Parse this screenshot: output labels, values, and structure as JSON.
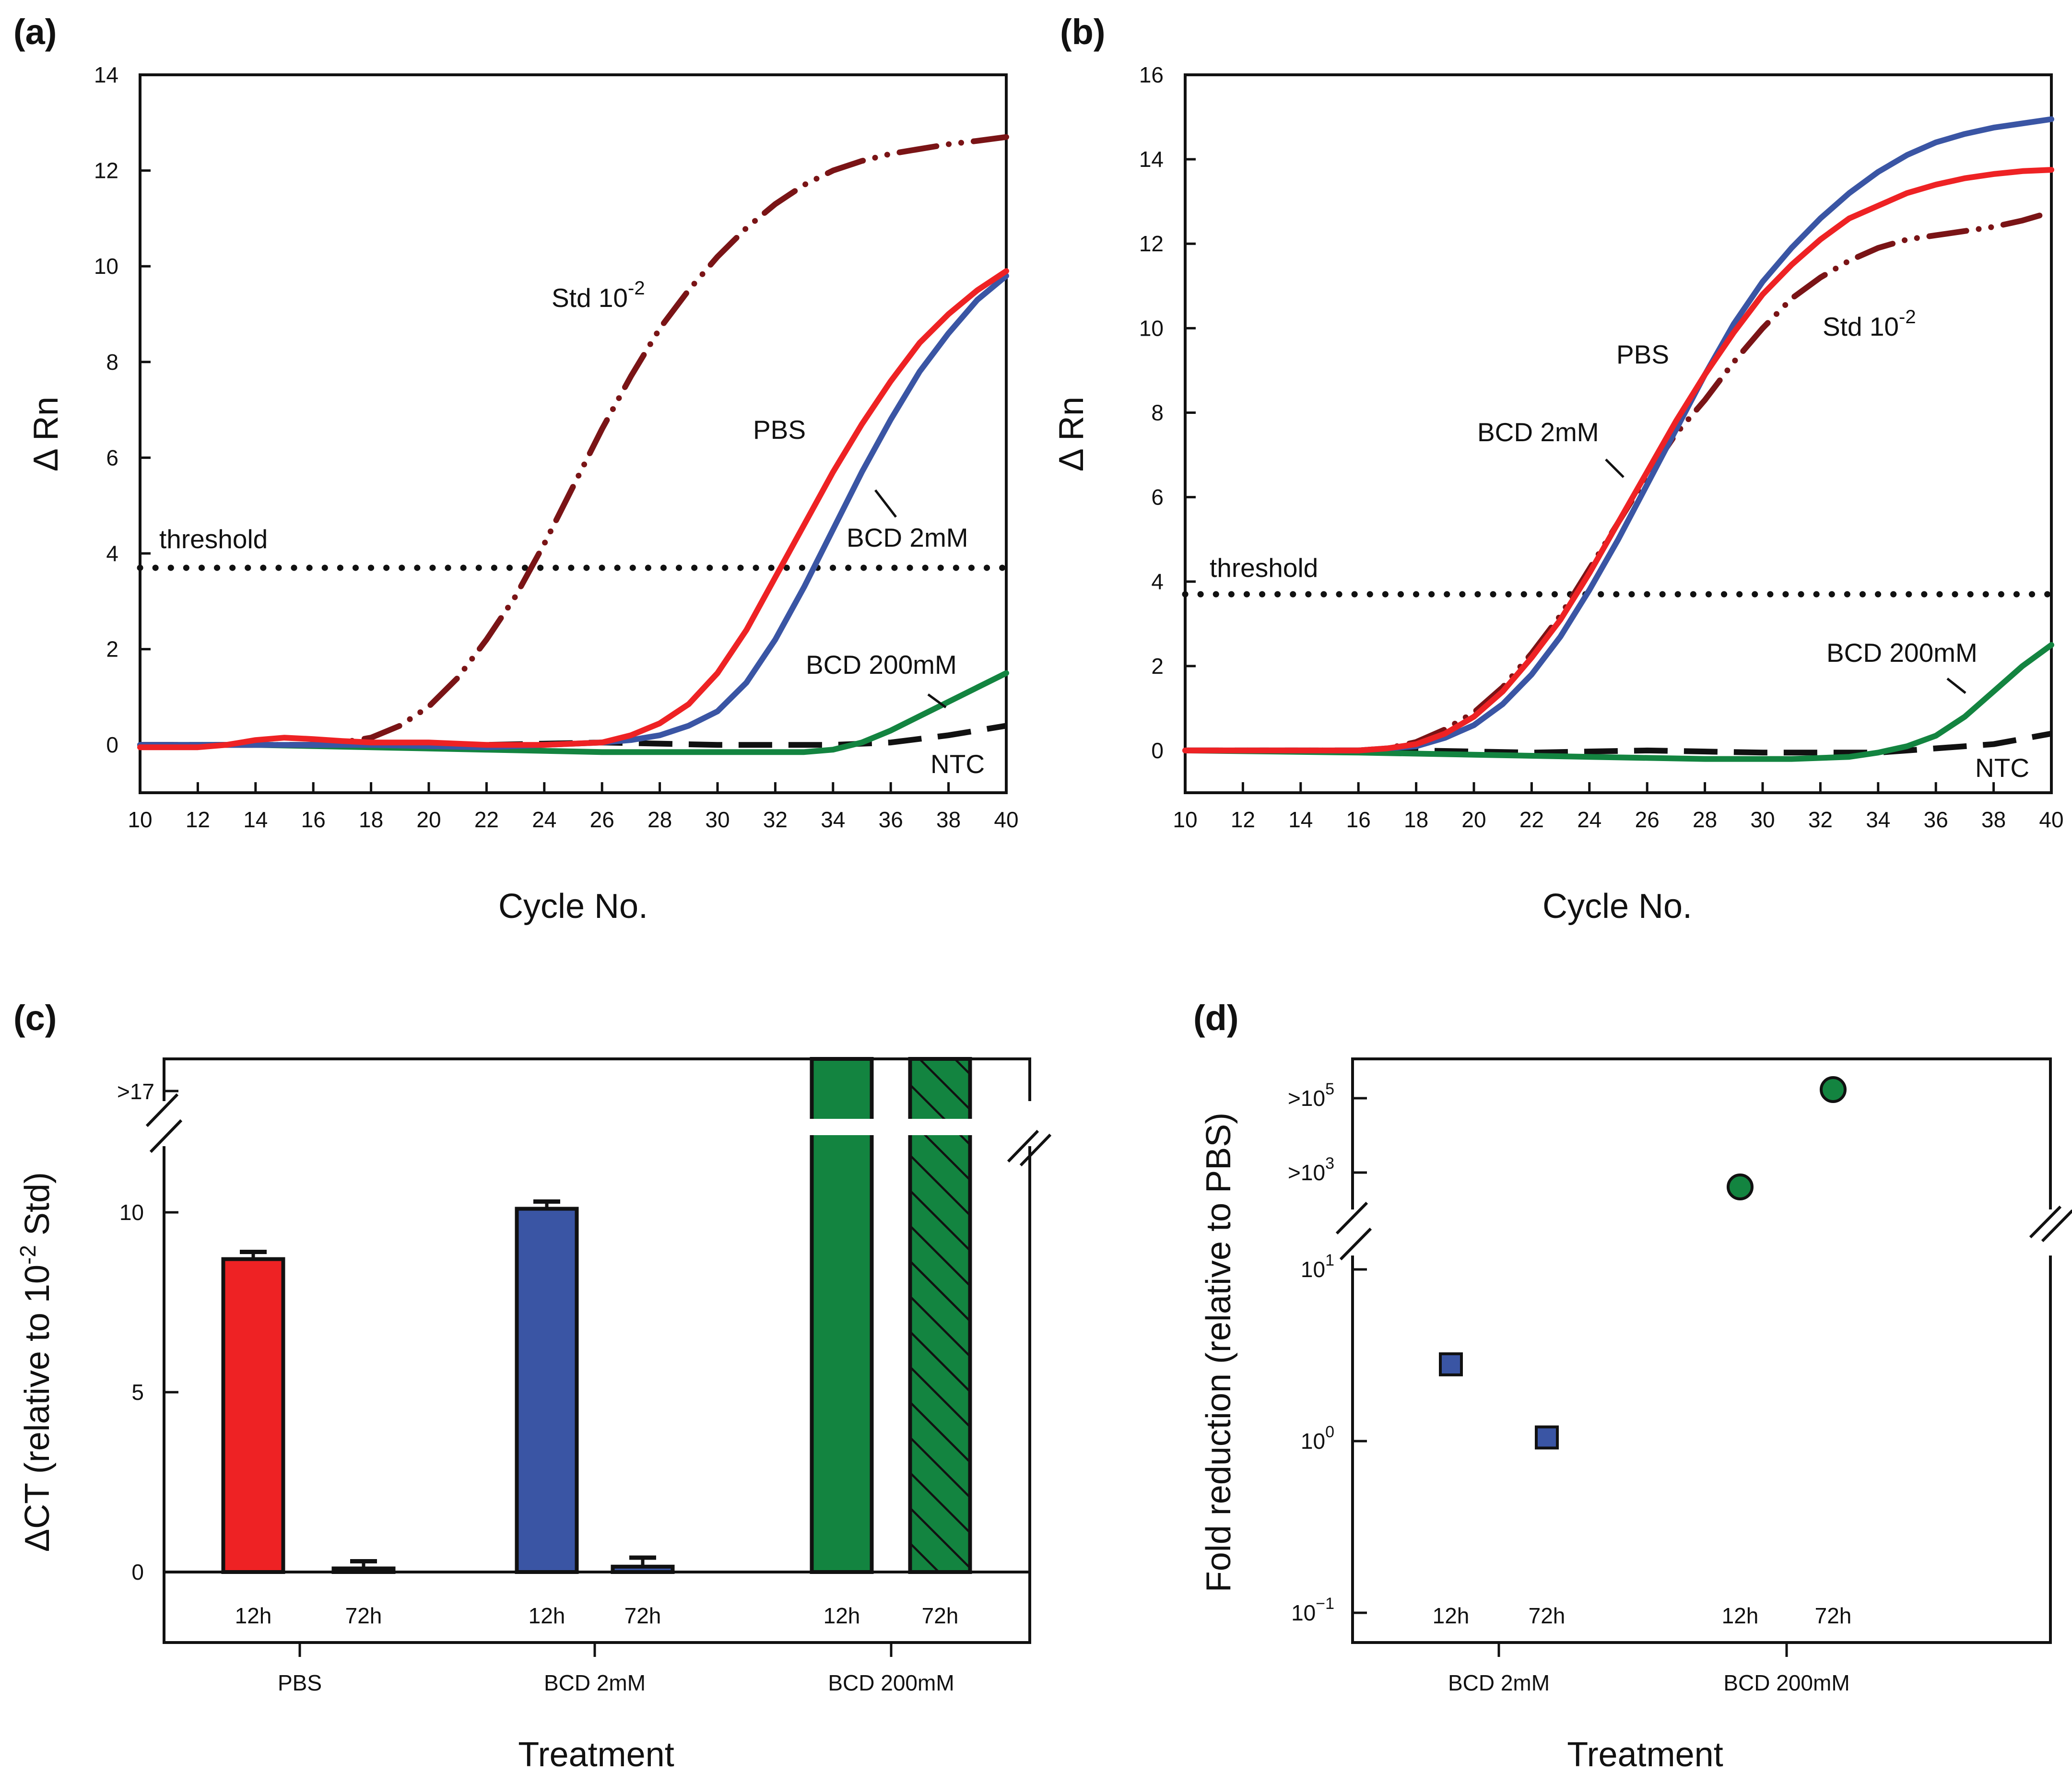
{
  "colors": {
    "red": "#ee2224",
    "blue": "#3a55a4",
    "green": "#138440",
    "darkred": "#7a1416",
    "black": "#111111"
  },
  "chart_data": [
    {
      "panel": "(a)",
      "type": "line",
      "xlabel": "Cycle No.",
      "ylabel": "Δ Rn",
      "xlim": [
        10,
        40
      ],
      "ylim": [
        -1,
        14
      ],
      "xticks": [
        "10",
        "12",
        "14",
        "16",
        "18",
        "20",
        "22",
        "24",
        "26",
        "28",
        "30",
        "32",
        "34",
        "36",
        "38",
        "40"
      ],
      "yticks": [
        "0",
        "2",
        "4",
        "6",
        "8",
        "10",
        "12",
        "14"
      ],
      "threshold": {
        "label": "threshold",
        "value": 3.7
      },
      "annotations": {
        "std": "Std 10",
        "std_exp": "-2",
        "pbs": "PBS",
        "bcd2": "BCD 2mM",
        "bcd200": "BCD 200mM",
        "ntc": "NTC"
      },
      "series": [
        {
          "name": "Std 10-2",
          "color": "darkred",
          "style": "dashdotdot",
          "x": [
            10,
            12,
            14,
            16,
            17,
            18,
            19,
            20,
            21,
            22,
            23,
            24,
            25,
            26,
            27,
            28,
            29,
            30,
            31,
            32,
            33,
            34,
            35,
            36,
            37,
            38,
            39,
            40
          ],
          "values": [
            0,
            0,
            0,
            0,
            0.05,
            0.15,
            0.4,
            0.8,
            1.4,
            2.2,
            3.1,
            4.2,
            5.4,
            6.6,
            7.7,
            8.7,
            9.5,
            10.2,
            10.8,
            11.3,
            11.7,
            12.0,
            12.2,
            12.35,
            12.45,
            12.55,
            12.62,
            12.7
          ]
        },
        {
          "name": "PBS",
          "color": "red",
          "style": "solid",
          "x": [
            10,
            12,
            13,
            14,
            15,
            16,
            17,
            18,
            20,
            22,
            24,
            26,
            27,
            28,
            29,
            30,
            31,
            32,
            33,
            34,
            35,
            36,
            37,
            38,
            39,
            40
          ],
          "values": [
            -0.05,
            -0.05,
            0,
            0.1,
            0.15,
            0.12,
            0.08,
            0.05,
            0.05,
            0.0,
            0,
            0.05,
            0.2,
            0.45,
            0.85,
            1.5,
            2.4,
            3.5,
            4.6,
            5.7,
            6.7,
            7.6,
            8.4,
            9.0,
            9.5,
            9.9
          ]
        },
        {
          "name": "BCD 2mM",
          "color": "blue",
          "style": "solid",
          "x": [
            10,
            14,
            18,
            22,
            24,
            26,
            27,
            28,
            29,
            30,
            31,
            32,
            33,
            34,
            35,
            36,
            37,
            38,
            39,
            40
          ],
          "values": [
            0,
            0,
            0,
            -0.05,
            0,
            0.05,
            0.1,
            0.2,
            0.4,
            0.7,
            1.3,
            2.2,
            3.3,
            4.5,
            5.7,
            6.8,
            7.8,
            8.6,
            9.3,
            9.8
          ]
        },
        {
          "name": "BCD 200mM",
          "color": "green",
          "style": "solid",
          "x": [
            10,
            14,
            18,
            22,
            26,
            30,
            33,
            34,
            35,
            36,
            37,
            38,
            39,
            40
          ],
          "values": [
            0,
            0,
            -0.05,
            -0.1,
            -0.15,
            -0.15,
            -0.15,
            -0.1,
            0.05,
            0.3,
            0.6,
            0.9,
            1.2,
            1.5
          ]
        },
        {
          "name": "NTC",
          "color": "black",
          "style": "dashed",
          "x": [
            10,
            14,
            18,
            22,
            26,
            30,
            34,
            36,
            38,
            40
          ],
          "values": [
            0,
            0,
            0,
            0,
            0.05,
            0,
            0,
            0.05,
            0.2,
            0.4
          ]
        }
      ]
    },
    {
      "panel": "(b)",
      "type": "line",
      "xlabel": "Cycle No.",
      "ylabel": "Δ Rn",
      "xlim": [
        10,
        40
      ],
      "ylim": [
        -1,
        16
      ],
      "xticks": [
        "10",
        "12",
        "14",
        "16",
        "18",
        "20",
        "22",
        "24",
        "26",
        "28",
        "30",
        "32",
        "34",
        "36",
        "38",
        "40"
      ],
      "yticks": [
        "0",
        "2",
        "4",
        "6",
        "8",
        "10",
        "12",
        "14",
        "16"
      ],
      "threshold": {
        "label": "threshold",
        "value": 3.7
      },
      "annotations": {
        "std": "Std 10",
        "std_exp": "-2",
        "pbs": "PBS",
        "bcd2": "BCD 2mM",
        "bcd200": "BCD 200mM",
        "ntc": "NTC"
      },
      "series": [
        {
          "name": "Std 10-2",
          "color": "darkred",
          "style": "dashdotdot",
          "x": [
            10,
            14,
            16,
            17,
            18,
            19,
            20,
            21,
            22,
            23,
            24,
            25,
            26,
            27,
            28,
            29,
            30,
            31,
            32,
            33,
            34,
            35,
            36,
            37,
            38,
            39,
            40
          ],
          "values": [
            0,
            0,
            0,
            0.05,
            0.2,
            0.5,
            0.9,
            1.5,
            2.3,
            3.2,
            4.3,
            5.4,
            6.5,
            7.5,
            8.3,
            9.2,
            10.0,
            10.7,
            11.2,
            11.6,
            11.9,
            12.1,
            12.2,
            12.3,
            12.4,
            12.55,
            12.75
          ]
        },
        {
          "name": "PBS",
          "color": "red",
          "style": "solid",
          "x": [
            10,
            14,
            16,
            17,
            18,
            19,
            20,
            21,
            22,
            23,
            24,
            25,
            26,
            27,
            28,
            29,
            30,
            31,
            32,
            33,
            34,
            35,
            36,
            37,
            38,
            39,
            40
          ],
          "values": [
            0,
            0,
            0,
            0.05,
            0.15,
            0.4,
            0.8,
            1.4,
            2.2,
            3.1,
            4.2,
            5.4,
            6.6,
            7.8,
            8.9,
            9.9,
            10.8,
            11.5,
            12.1,
            12.6,
            12.9,
            13.2,
            13.4,
            13.55,
            13.65,
            13.72,
            13.75
          ]
        },
        {
          "name": "BCD 2mM",
          "color": "blue",
          "style": "solid",
          "x": [
            10,
            14,
            16,
            18,
            19,
            20,
            21,
            22,
            23,
            24,
            25,
            26,
            27,
            28,
            29,
            30,
            31,
            32,
            33,
            34,
            35,
            36,
            37,
            38,
            39,
            40
          ],
          "values": [
            0,
            0,
            0,
            0.1,
            0.3,
            0.6,
            1.1,
            1.8,
            2.7,
            3.8,
            5.0,
            6.3,
            7.6,
            8.9,
            10.1,
            11.1,
            11.9,
            12.6,
            13.2,
            13.7,
            14.1,
            14.4,
            14.6,
            14.75,
            14.85,
            14.95
          ]
        },
        {
          "name": "BCD 200mM",
          "color": "green",
          "style": "solid",
          "x": [
            10,
            16,
            20,
            24,
            28,
            31,
            33,
            34,
            35,
            36,
            37,
            38,
            39,
            40
          ],
          "values": [
            0,
            -0.05,
            -0.1,
            -0.15,
            -0.2,
            -0.2,
            -0.15,
            -0.05,
            0.1,
            0.35,
            0.8,
            1.4,
            2.0,
            2.5
          ]
        },
        {
          "name": "NTC",
          "color": "black",
          "style": "dashed",
          "x": [
            10,
            14,
            18,
            22,
            26,
            30,
            34,
            36,
            38,
            40
          ],
          "values": [
            0,
            0,
            0,
            -0.05,
            0,
            -0.05,
            -0.05,
            0.05,
            0.15,
            0.4
          ]
        }
      ]
    },
    {
      "panel": "(c)",
      "type": "bar",
      "xlabel": "Treatment",
      "ylabel_pre": "ΔCT (relative to 10",
      "ylabel_sup": "-2",
      "ylabel_post": " Std)",
      "yticks": [
        "0",
        "5",
        "10"
      ],
      "ybreak_label": ">17",
      "categories": [
        "PBS",
        "BCD 2mM",
        "BCD 200mM"
      ],
      "sublabels": [
        "12h",
        "72h"
      ],
      "series": [
        {
          "name": "12h",
          "values": [
            8.7,
            10.1,
            ">17"
          ],
          "errors": [
            0.2,
            0.2,
            null
          ]
        },
        {
          "name": "72h",
          "values": [
            0.1,
            0.15,
            ">17"
          ],
          "errors": [
            0.2,
            0.25,
            null
          ]
        }
      ],
      "bar_colors": [
        "red",
        "blue",
        "green"
      ]
    },
    {
      "panel": "(d)",
      "type": "scatter",
      "xlabel": "Treatment",
      "ylabel": "Fold reduction (relative to PBS)",
      "yscale": "log",
      "yticks": [
        {
          "base": "10",
          "exp": "−1"
        },
        {
          "base": "10",
          "exp": "0"
        },
        {
          "base": "10",
          "exp": "1"
        }
      ],
      "ybreak_ticks": [
        {
          "base": ">10",
          "exp": "3"
        },
        {
          "base": ">10",
          "exp": "5"
        }
      ],
      "categories": [
        "BCD 2mM",
        "BCD 200mM"
      ],
      "sublabels": [
        "12h",
        "72h"
      ],
      "series": [
        {
          "name": "BCD 2mM",
          "marker": "square",
          "color": "blue",
          "values": [
            2.8,
            1.05
          ]
        },
        {
          "name": "BCD 200mM",
          "marker": "circle",
          "color": "green",
          "values": [
            ">10^3",
            ">10^5"
          ]
        }
      ]
    }
  ]
}
